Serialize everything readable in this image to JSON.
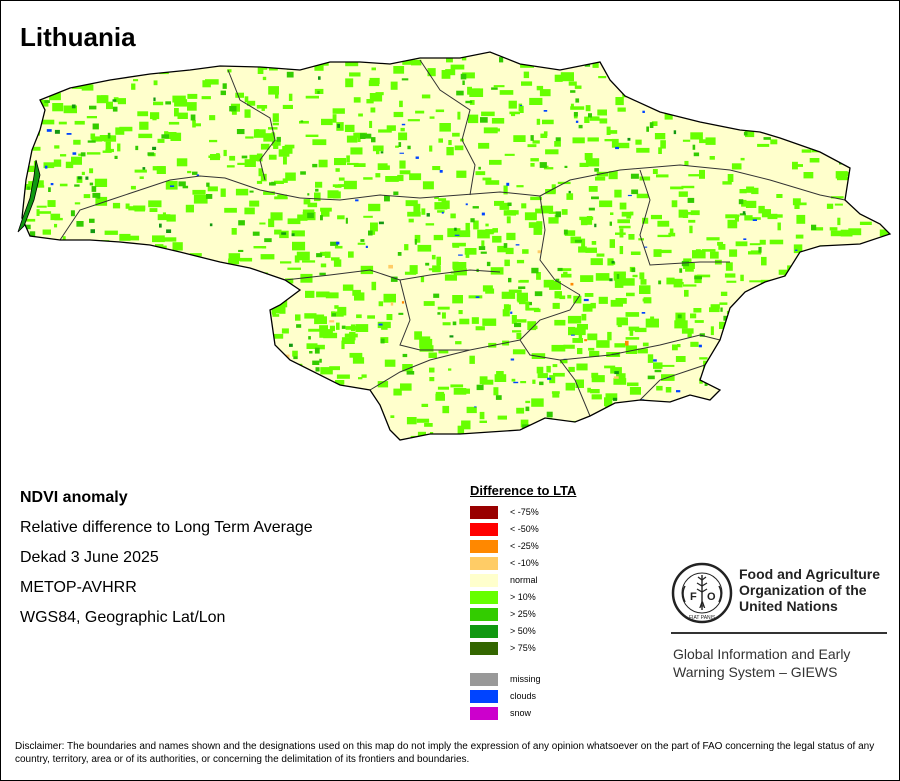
{
  "map": {
    "title": "Lithuania",
    "colors": {
      "normal": "#ffffcc",
      "gt10": "#66ff00",
      "gt25": "#33cc00",
      "gt50": "#119911",
      "gt75": "#336600",
      "lt10": "#ffcc66",
      "lt25": "#ff8800",
      "clouds": "#0044ff",
      "border": "#000000"
    }
  },
  "info": {
    "product": "NDVI anomaly",
    "description": "Relative difference to Long Term Average",
    "period": "Dekad 3 June 2025",
    "sensor": "METOP-AVHRR",
    "projection": "WGS84, Geographic Lat/Lon"
  },
  "legend": {
    "title": "Difference to LTA",
    "items": [
      {
        "label": "< -75%",
        "color": "#990000"
      },
      {
        "label": "< -50%",
        "color": "#ff0000"
      },
      {
        "label": "< -25%",
        "color": "#ff8800"
      },
      {
        "label": "< -10%",
        "color": "#ffcc66"
      },
      {
        "label": "normal",
        "color": "#ffffcc"
      },
      {
        "label": "> 10%",
        "color": "#66ff00"
      },
      {
        "label": "> 25%",
        "color": "#33cc00"
      },
      {
        "label": "> 50%",
        "color": "#119911"
      },
      {
        "label": "> 75%",
        "color": "#336600"
      }
    ],
    "extra": [
      {
        "label": "missing",
        "color": "#999999"
      },
      {
        "label": "clouds",
        "color": "#0044ff"
      },
      {
        "label": "snow",
        "color": "#cc00cc"
      }
    ]
  },
  "fao": {
    "logo_text": "FAO",
    "logo_motto": "FIAT PANIS",
    "name_line1": "Food and Agriculture",
    "name_line2": "Organization of the",
    "name_line3": "United Nations",
    "giews_line1": "Global Information and Early",
    "giews_line2": "Warning System – GIEWS"
  },
  "disclaimer": "Disclaimer: The boundaries and names shown and the designations used on this map do not imply the expression of any opinion whatsoever on the part of FAO concerning the legal status of any country, territory, area or of its authorities, or concerning the delimitation of its frontiers and boundaries."
}
